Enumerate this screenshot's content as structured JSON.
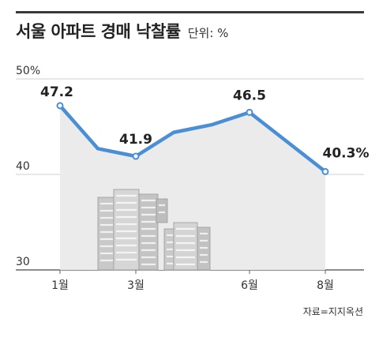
{
  "title": "서울 아파트 경매 낙찰률",
  "unit": "단위: %",
  "source": "자료=지지옥션",
  "chart_data": {
    "type": "line",
    "title": "서울 아파트 경매 낙찰률",
    "xlabel": "",
    "ylabel": "",
    "ylim": [
      30,
      50
    ],
    "y_ticks": [
      "50%",
      "40",
      "30"
    ],
    "y_tick_values": [
      50,
      40,
      30
    ],
    "x": [
      1,
      2,
      3,
      4,
      5,
      6,
      7,
      8
    ],
    "x_tick_labels": [
      {
        "x": 1,
        "label": "1월"
      },
      {
        "x": 3,
        "label": "3월"
      },
      {
        "x": 6,
        "label": "6월"
      },
      {
        "x": 8,
        "label": "8월"
      }
    ],
    "values": [
      47.2,
      42.7,
      41.9,
      44.4,
      45.2,
      46.5,
      43.4,
      40.3
    ],
    "data_labels": [
      {
        "x": 1,
        "label": "47.2"
      },
      {
        "x": 3,
        "label": "41.9"
      },
      {
        "x": 6,
        "label": "46.5"
      },
      {
        "x": 8,
        "label": "40.3%"
      }
    ],
    "line_color": "#4a8fd6",
    "area_color": "#ebebeb",
    "grid": true
  }
}
